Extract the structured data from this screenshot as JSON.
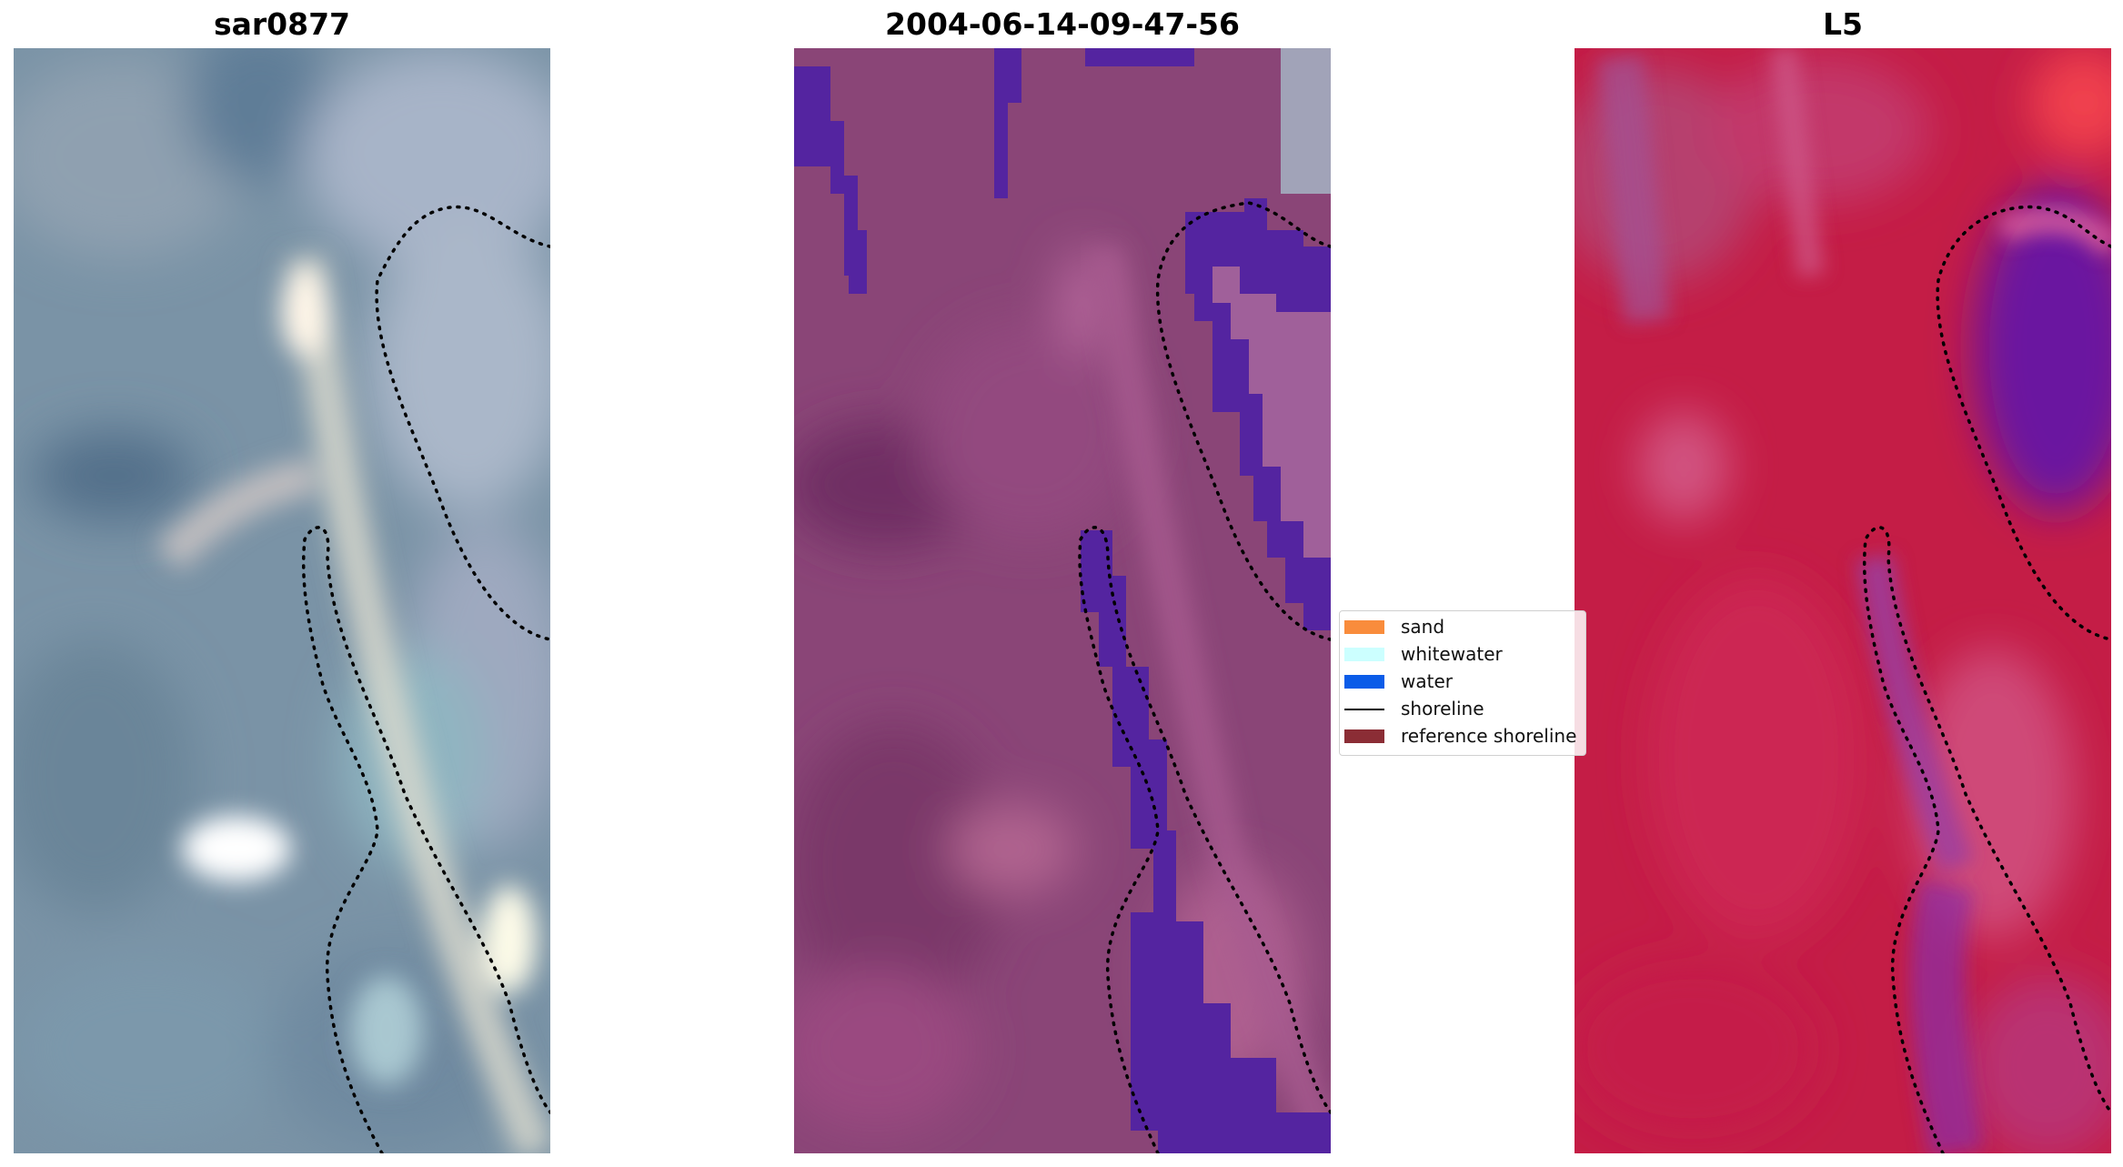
{
  "panels": {
    "left_title": "sar0877",
    "center_title": "2004-06-14-09-47-56",
    "right_title": "L5"
  },
  "legend": {
    "items": [
      {
        "label": "sand",
        "color": "#f98c3c",
        "kind": "patch"
      },
      {
        "label": "whitewater",
        "color": "#ccffff",
        "kind": "patch"
      },
      {
        "label": "water",
        "color": "#0b5ce8",
        "kind": "patch"
      },
      {
        "label": "shoreline",
        "color": "#000000",
        "kind": "line"
      },
      {
        "label": "reference shoreline",
        "color": "#8b2d35",
        "kind": "patch"
      }
    ]
  },
  "colors": {
    "rgb_base": "#7a93a6",
    "class_base": "#8a4577",
    "class_water": "#5424a0",
    "index_base": "#c41d46",
    "index_low": "#5a0d9c"
  }
}
